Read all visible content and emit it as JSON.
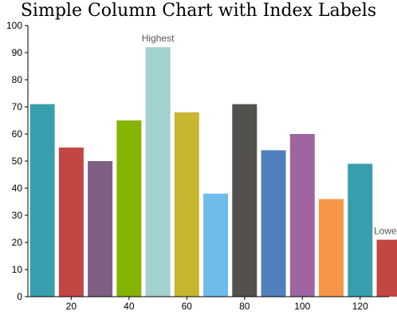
{
  "chart_data": {
    "type": "bar",
    "title": "Simple Column Chart with Index Labels",
    "xlabel": "",
    "ylabel": "",
    "x_range": [
      5,
      130
    ],
    "x_ticks": [
      20,
      40,
      60,
      80,
      100,
      120
    ],
    "ylim": [
      0,
      100
    ],
    "y_ticks": [
      0,
      10,
      20,
      30,
      40,
      50,
      60,
      70,
      80,
      90,
      100
    ],
    "grid": false,
    "legend": "none",
    "points": [
      {
        "x": 10,
        "y": 71,
        "color": "#369EAD"
      },
      {
        "x": 20,
        "y": 55,
        "color": "#C24642"
      },
      {
        "x": 30,
        "y": 50,
        "color": "#7F6084"
      },
      {
        "x": 40,
        "y": 65,
        "color": "#86B402"
      },
      {
        "x": 50,
        "y": 92,
        "color": "#A2D1CF",
        "index_label": "Highest"
      },
      {
        "x": 60,
        "y": 68,
        "color": "#C8B631"
      },
      {
        "x": 70,
        "y": 38,
        "color": "#6DBCEB"
      },
      {
        "x": 80,
        "y": 71,
        "color": "#52514E"
      },
      {
        "x": 90,
        "y": 54,
        "color": "#4F81BC"
      },
      {
        "x": 100,
        "y": 60,
        "color": "#A064A1"
      },
      {
        "x": 110,
        "y": 36,
        "color": "#F79647"
      },
      {
        "x": 120,
        "y": 49,
        "color": "#369EAD"
      },
      {
        "x": 130,
        "y": 21,
        "color": "#C24642",
        "index_label": "Lowest"
      }
    ]
  }
}
